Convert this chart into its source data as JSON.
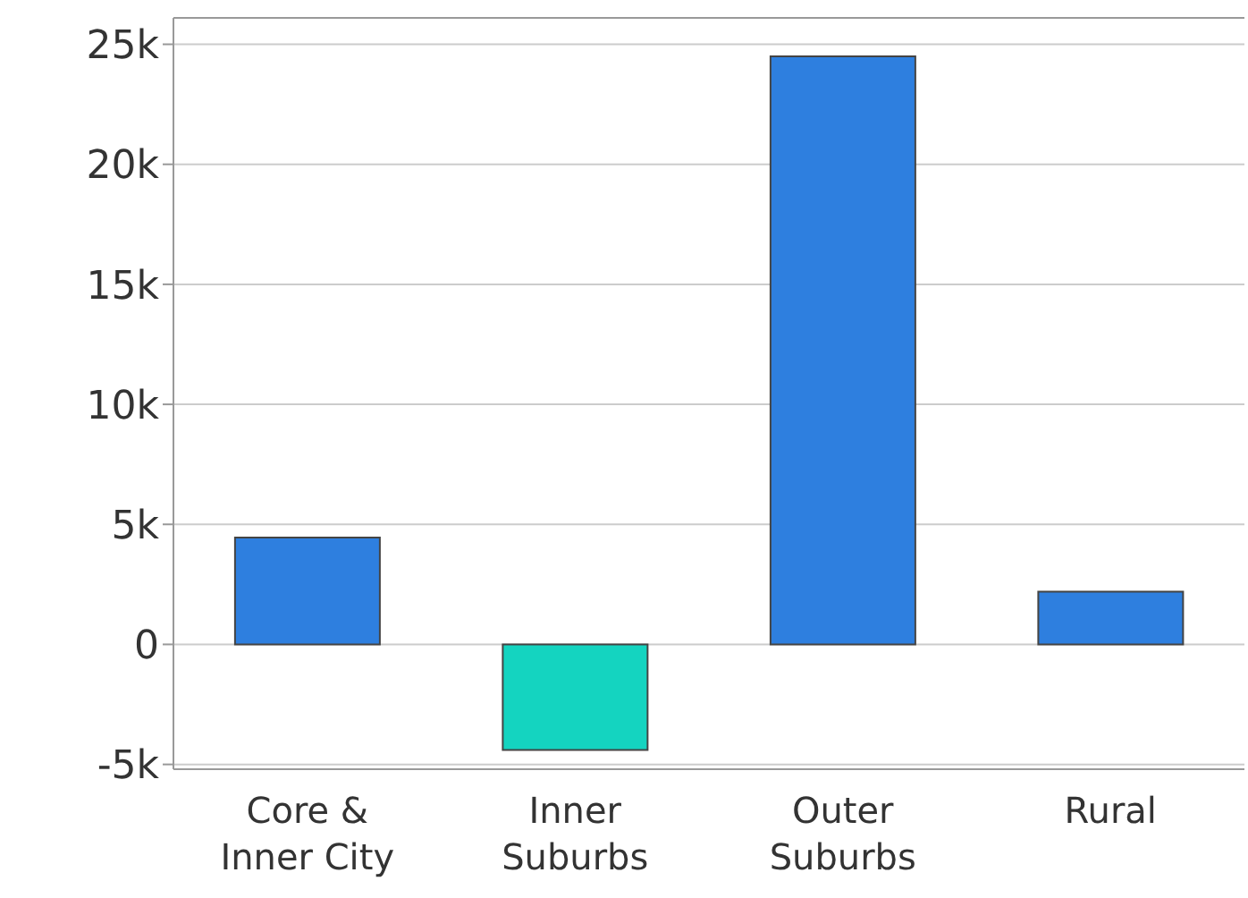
{
  "chart_data": {
    "type": "bar",
    "categories": [
      "Core & Inner City",
      "Inner Suburbs",
      "Outer Suburbs",
      "Rural"
    ],
    "values": [
      4450,
      -4400,
      24500,
      2200
    ],
    "colors": [
      "#2e7fdf",
      "#14d4c0",
      "#2e7fdf",
      "#2e7fdf"
    ],
    "ylim": [
      -5200,
      26100
    ],
    "yticks": [
      {
        "value": -5000,
        "label": "-5k"
      },
      {
        "value": 0,
        "label": "0"
      },
      {
        "value": 5000,
        "label": "5k"
      },
      {
        "value": 10000,
        "label": "10k"
      },
      {
        "value": 15000,
        "label": "15k"
      },
      {
        "value": 20000,
        "label": "20k"
      },
      {
        "value": 25000,
        "label": "25k"
      }
    ],
    "grid": "y"
  }
}
